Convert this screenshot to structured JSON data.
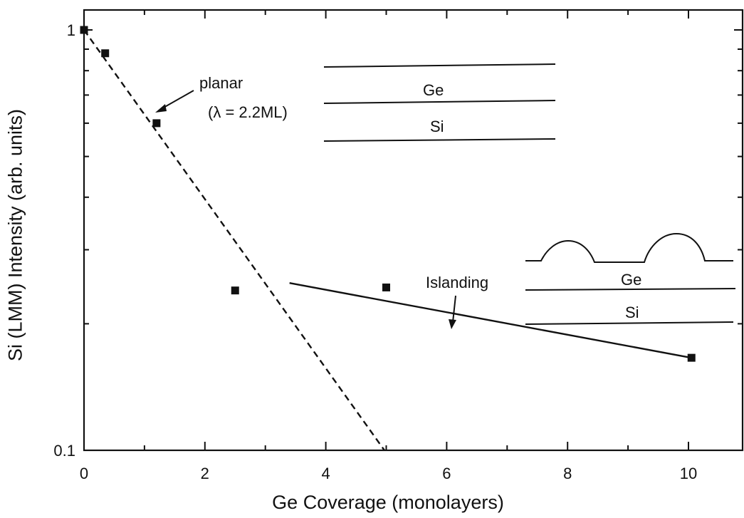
{
  "chart_data": {
    "type": "scatter",
    "x_label": "Ge Coverage (monolayers)",
    "y_label": "Si (LMM) Intensity (arb. units)",
    "xlim": [
      0,
      11
    ],
    "ylim": [
      0.1,
      1
    ],
    "y_scale": "log",
    "x_ticks": [
      0,
      2,
      4,
      6,
      8,
      10
    ],
    "y_tick_labels": [
      {
        "value": 1,
        "label": "1"
      },
      {
        "value": 0.1,
        "label": "0.1"
      }
    ],
    "points": [
      {
        "x": 0.0,
        "y": 1.0
      },
      {
        "x": 0.35,
        "y": 0.88
      },
      {
        "x": 1.2,
        "y": 0.6
      },
      {
        "x": 2.5,
        "y": 0.24
      },
      {
        "x": 5.0,
        "y": 0.244
      },
      {
        "x": 10.05,
        "y": 0.166
      }
    ],
    "fits": [
      {
        "style": "dashed",
        "from": {
          "x": 0.0,
          "y": 1.0
        },
        "to": {
          "x": 4.97,
          "y": 0.1
        }
      },
      {
        "style": "solid",
        "from": {
          "x": 3.4,
          "y": 0.25
        },
        "to": {
          "x": 10.05,
          "y": 0.166
        }
      }
    ],
    "annotations": {
      "planar": "planar",
      "lambda": "(λ = 2.2ML)",
      "islanding": "Islanding",
      "inset_top_ge": "Ge",
      "inset_top_si": "Si",
      "inset_bottom_ge": "Ge",
      "inset_bottom_si": "Si"
    }
  }
}
